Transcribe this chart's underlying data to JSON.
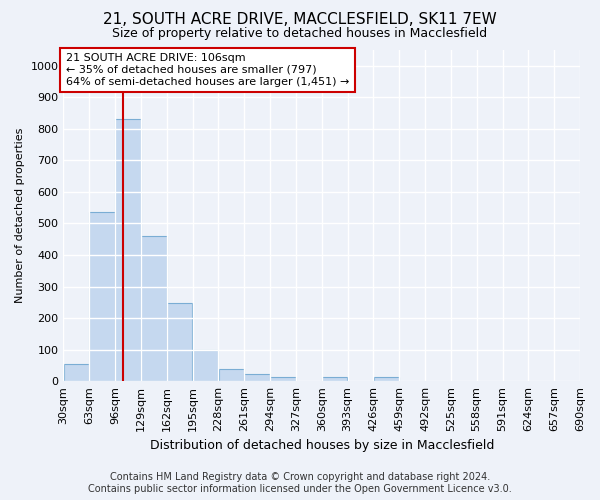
{
  "title_line1": "21, SOUTH ACRE DRIVE, MACCLESFIELD, SK11 7EW",
  "title_line2": "Size of property relative to detached houses in Macclesfield",
  "xlabel": "Distribution of detached houses by size in Macclesfield",
  "ylabel": "Number of detached properties",
  "footer_line1": "Contains HM Land Registry data © Crown copyright and database right 2024.",
  "footer_line2": "Contains public sector information licensed under the Open Government Licence v3.0.",
  "annotation_line1": "21 SOUTH ACRE DRIVE: 106sqm",
  "annotation_line2": "← 35% of detached houses are smaller (797)",
  "annotation_line3": "64% of semi-detached houses are larger (1,451) →",
  "bar_color": "#c5d8ef",
  "bar_edge_color": "#7aadd4",
  "vline_color": "#cc0000",
  "vline_x": 106,
  "bin_edges": [
    30,
    63,
    96,
    129,
    162,
    195,
    228,
    261,
    294,
    327,
    360,
    393,
    426,
    459,
    492,
    525,
    558,
    591,
    624,
    657,
    690
  ],
  "bar_heights": [
    55,
    535,
    830,
    460,
    248,
    98,
    38,
    22,
    12,
    0,
    12,
    0,
    12,
    0,
    0,
    0,
    0,
    0,
    0,
    0
  ],
  "ylim": [
    0,
    1050
  ],
  "yticks": [
    0,
    100,
    200,
    300,
    400,
    500,
    600,
    700,
    800,
    900,
    1000
  ],
  "background_color": "#eef2f9",
  "grid_color": "#ffffff",
  "annotation_box_color": "#ffffff",
  "annotation_box_edge": "#cc0000",
  "title1_fontsize": 11,
  "title2_fontsize": 9,
  "ylabel_fontsize": 8,
  "xlabel_fontsize": 9,
  "tick_fontsize": 8,
  "annotation_fontsize": 8,
  "footer_fontsize": 7
}
